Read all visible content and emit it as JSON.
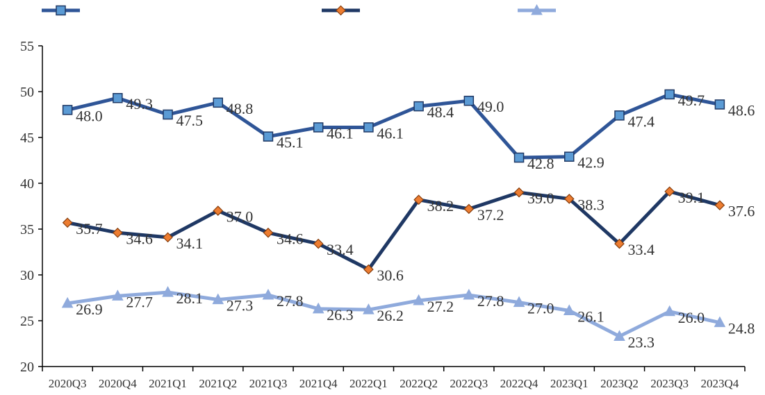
{
  "chart_data": {
    "type": "line",
    "categories": [
      "2020Q3",
      "2020Q4",
      "2021Q1",
      "2021Q2",
      "2021Q3",
      "2021Q4",
      "2022Q1",
      "2022Q2",
      "2022Q3",
      "2022Q4",
      "2023Q1",
      "2023Q2",
      "2023Q3",
      "2023Q4"
    ],
    "ylim": [
      20,
      55
    ],
    "yticks": [
      20,
      25,
      30,
      35,
      40,
      45,
      50,
      55
    ],
    "grid": false,
    "legend_position": "top",
    "series": [
      {
        "values": [
          48.0,
          49.3,
          47.5,
          48.8,
          45.1,
          46.1,
          46.1,
          48.4,
          49.0,
          42.8,
          42.9,
          47.4,
          49.7,
          48.6
        ],
        "labels": [
          "48.0",
          "49.3",
          "47.5",
          "48.8",
          "45.1",
          "46.1",
          "46.1",
          "48.4",
          "49.0",
          "42.8",
          "42.9",
          "47.4",
          "49.7",
          "48.6"
        ],
        "color": "#2f5597",
        "marker": "square",
        "marker_color": "#5b9bd5"
      },
      {
        "values": [
          35.7,
          34.6,
          34.1,
          37.0,
          34.6,
          33.4,
          30.6,
          38.2,
          37.2,
          39.0,
          38.3,
          33.4,
          39.1,
          37.6
        ],
        "labels": [
          "35.7",
          "34.6",
          "34.1",
          "37.0",
          "34.6",
          "33.4",
          "30.6",
          "38.2",
          "37.2",
          "39.0",
          "38.3",
          "33.4",
          "39.1",
          "37.6"
        ],
        "color": "#1f3864",
        "marker": "diamond",
        "marker_color": "#ed7d31"
      },
      {
        "values": [
          26.9,
          27.7,
          28.1,
          27.3,
          27.8,
          26.3,
          26.2,
          27.2,
          27.8,
          27.0,
          26.1,
          23.3,
          26.0,
          24.8
        ],
        "labels": [
          "26.9",
          "27.7",
          "28.1",
          "27.3",
          "27.8",
          "26.3",
          "26.2",
          "27.2",
          "27.8",
          "27.0",
          "26.1",
          "23.3",
          "26.0",
          "24.8"
        ],
        "color": "#8faadc",
        "marker": "triangle",
        "marker_color": "#8faadc"
      }
    ]
  }
}
